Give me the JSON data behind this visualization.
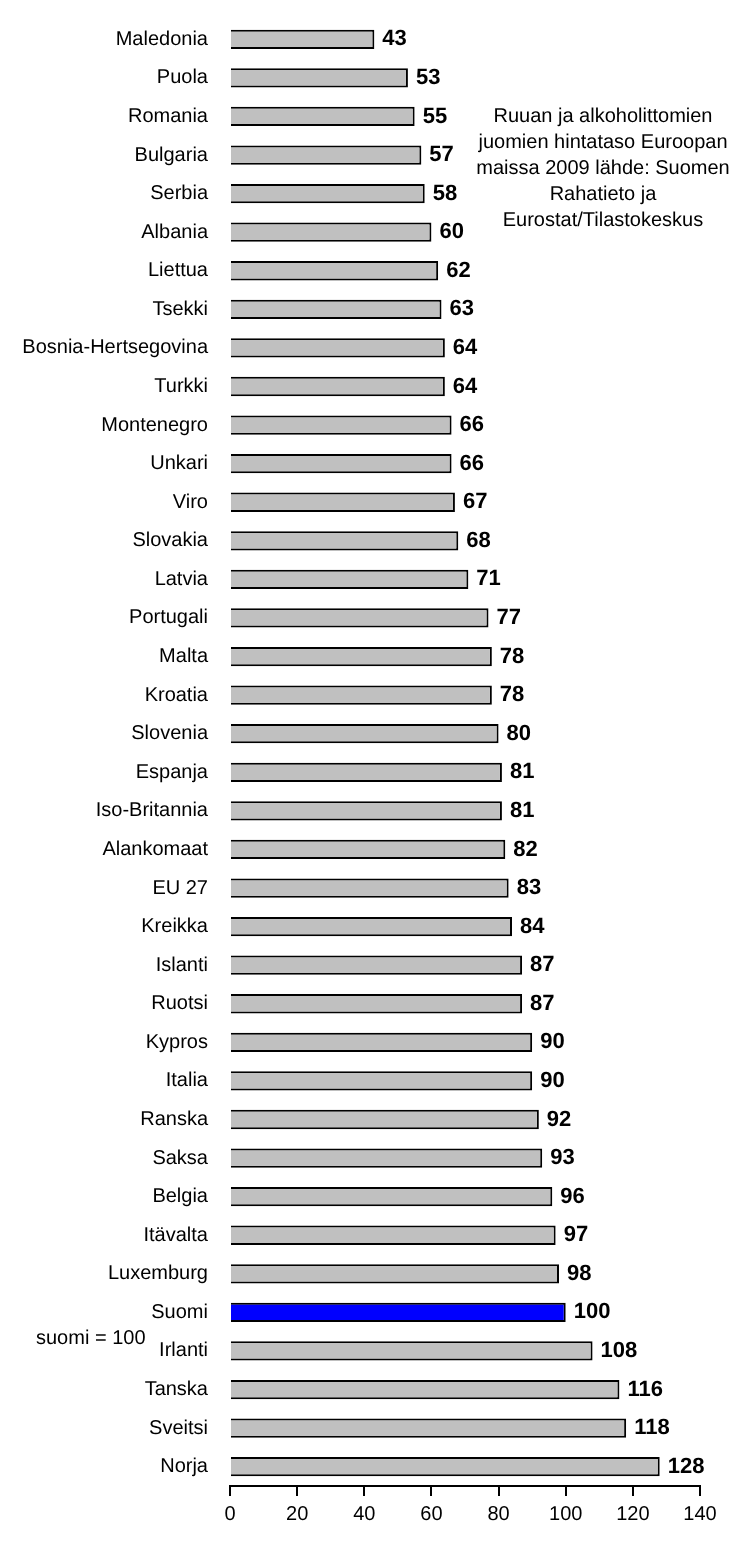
{
  "chart_data": {
    "type": "bar",
    "orientation": "horizontal",
    "categories": [
      "Maledonia",
      "Puola",
      "Romania",
      "Bulgaria",
      "Serbia",
      "Albania",
      "Liettua",
      "Tsekki",
      "Bosnia-Hertsegovina",
      "Turkki",
      "Montenegro",
      "Unkari",
      "Viro",
      "Slovakia",
      "Latvia",
      "Portugali",
      "Malta",
      "Kroatia",
      "Slovenia",
      "Espanja",
      "Iso-Britannia",
      "Alankomaat",
      "EU 27",
      "Kreikka",
      "Islanti",
      "Ruotsi",
      "Kypros",
      "Italia",
      "Ranska",
      "Saksa",
      "Belgia",
      "Itävalta",
      "Luxemburg",
      "Suomi",
      "Irlanti",
      "Tanska",
      "Sveitsi",
      "Norja"
    ],
    "values": [
      43,
      53,
      55,
      57,
      58,
      60,
      62,
      63,
      64,
      64,
      66,
      66,
      67,
      68,
      71,
      77,
      78,
      78,
      80,
      81,
      81,
      82,
      83,
      84,
      87,
      87,
      90,
      90,
      92,
      93,
      96,
      97,
      98,
      100,
      108,
      116,
      118,
      128
    ],
    "colors": [
      "#c0c0c0",
      "#c0c0c0",
      "#c0c0c0",
      "#c0c0c0",
      "#c0c0c0",
      "#c0c0c0",
      "#c0c0c0",
      "#c0c0c0",
      "#c0c0c0",
      "#c0c0c0",
      "#c0c0c0",
      "#c0c0c0",
      "#c0c0c0",
      "#c0c0c0",
      "#c0c0c0",
      "#c0c0c0",
      "#c0c0c0",
      "#c0c0c0",
      "#c0c0c0",
      "#c0c0c0",
      "#c0c0c0",
      "#c0c0c0",
      "#c0c0c0",
      "#c0c0c0",
      "#c0c0c0",
      "#c0c0c0",
      "#c0c0c0",
      "#c0c0c0",
      "#c0c0c0",
      "#c0c0c0",
      "#c0c0c0",
      "#c0c0c0",
      "#c0c0c0",
      "#0000ff",
      "#c0c0c0",
      "#c0c0c0",
      "#c0c0c0",
      "#c0c0c0"
    ],
    "xlim": [
      0,
      140
    ],
    "xticks": [
      0,
      20,
      40,
      60,
      80,
      100,
      120,
      140
    ],
    "data_labels": true,
    "grid": false,
    "legend": false,
    "annotations": [
      "Ruuan ja alkoholittomien juomien hintataso Euroopan maissa 2009 lähde: Suomen Rahatieto ja Eurostat/Tilastokeskus",
      "suomi = 100"
    ]
  }
}
